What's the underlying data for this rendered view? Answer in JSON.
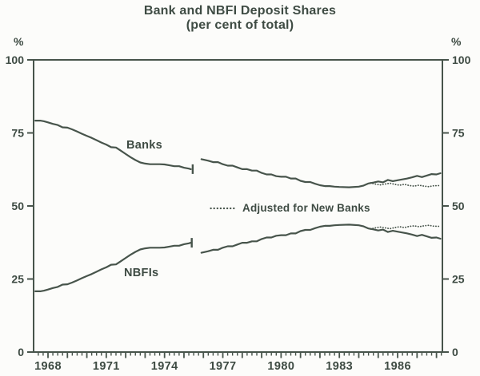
{
  "page": {
    "title": "Bank and NBFI Deposit Shares",
    "subtitle": "(per cent of total)",
    "y_axis_unit_left": "%",
    "y_axis_unit_right": "%"
  },
  "colors": {
    "ink": "#47544b",
    "text": "#3e4b43",
    "background": "#fcfcfa"
  },
  "labels": {
    "banks": "Banks",
    "nbfis": "NBFIs",
    "legend_adjusted": "Adjusted for New Banks"
  },
  "chart_data": {
    "type": "line",
    "title": "Bank and NBFI Deposit Shares",
    "subtitle": "(per cent of total)",
    "xlabel": "",
    "ylabel": "%",
    "ylim": [
      0,
      100
    ],
    "yticks": [
      0,
      25,
      50,
      75,
      100
    ],
    "xlim": [
      1967.35,
      1988.3
    ],
    "xtick_years": [
      1968,
      1971,
      1974,
      1977,
      1980,
      1983,
      1986
    ],
    "minor_tick_interval_years": 0.25,
    "grid": false,
    "legend_position": "middle-right-of-plot",
    "legend_entries": [
      {
        "label": "Adjusted for New Banks",
        "style": "dotted"
      }
    ],
    "annotations": [
      {
        "text": "Banks",
        "near": [
          1972.5,
          70
        ]
      },
      {
        "text": "NBFIs",
        "near": [
          1972.5,
          28
        ]
      }
    ],
    "series_break": {
      "note": "both solid series have a break with end-bars at mid-1975, resuming at a revised level in 1976",
      "markers": [
        {
          "x": 1975.45,
          "y": 62.6
        },
        {
          "x": 1975.4,
          "y": 37.4
        }
      ]
    },
    "series": [
      {
        "name": "Banks (pre-break)",
        "style": "solid",
        "points": [
          [
            1967.35,
            79.2
          ],
          [
            1967.6,
            79.2
          ],
          [
            1967.8,
            79.0
          ],
          [
            1968.0,
            78.6
          ],
          [
            1968.25,
            78.1
          ],
          [
            1968.5,
            77.7
          ],
          [
            1968.75,
            76.9
          ],
          [
            1969.0,
            76.8
          ],
          [
            1969.25,
            76.2
          ],
          [
            1969.5,
            75.5
          ],
          [
            1969.75,
            74.7
          ],
          [
            1970.0,
            74.0
          ],
          [
            1970.25,
            73.3
          ],
          [
            1970.5,
            72.5
          ],
          [
            1970.75,
            71.7
          ],
          [
            1971.0,
            71.0
          ],
          [
            1971.25,
            70.1
          ],
          [
            1971.5,
            70.0
          ],
          [
            1971.75,
            68.9
          ],
          [
            1972.0,
            67.8
          ],
          [
            1972.25,
            66.7
          ],
          [
            1972.5,
            65.7
          ],
          [
            1972.75,
            64.9
          ],
          [
            1973.0,
            64.5
          ],
          [
            1973.25,
            64.3
          ],
          [
            1973.75,
            64.3
          ],
          [
            1974.0,
            64.2
          ],
          [
            1974.25,
            63.9
          ],
          [
            1974.5,
            63.6
          ],
          [
            1974.75,
            63.6
          ],
          [
            1975.0,
            63.1
          ],
          [
            1975.25,
            62.8
          ],
          [
            1975.35,
            62.6
          ]
        ]
      },
      {
        "name": "Banks (post-break)",
        "style": "solid",
        "points": [
          [
            1975.9,
            66.0
          ],
          [
            1976.25,
            65.5
          ],
          [
            1976.5,
            65.0
          ],
          [
            1976.75,
            65.0
          ],
          [
            1977.0,
            64.3
          ],
          [
            1977.25,
            63.8
          ],
          [
            1977.5,
            63.8
          ],
          [
            1977.75,
            63.2
          ],
          [
            1978.0,
            62.6
          ],
          [
            1978.25,
            62.6
          ],
          [
            1978.5,
            62.1
          ],
          [
            1978.75,
            62.1
          ],
          [
            1979.0,
            61.3
          ],
          [
            1979.25,
            60.8
          ],
          [
            1979.5,
            60.8
          ],
          [
            1979.75,
            60.2
          ],
          [
            1980.0,
            60.0
          ],
          [
            1980.25,
            60.0
          ],
          [
            1980.5,
            59.4
          ],
          [
            1980.75,
            59.4
          ],
          [
            1981.0,
            58.6
          ],
          [
            1981.25,
            58.2
          ],
          [
            1981.5,
            58.2
          ],
          [
            1981.75,
            57.6
          ],
          [
            1982.0,
            57.1
          ],
          [
            1982.25,
            56.8
          ],
          [
            1982.5,
            56.8
          ],
          [
            1982.75,
            56.6
          ],
          [
            1983.0,
            56.5
          ],
          [
            1983.5,
            56.4
          ],
          [
            1984.0,
            56.6
          ],
          [
            1984.25,
            57.0
          ],
          [
            1984.5,
            57.7
          ],
          [
            1984.75,
            58.0
          ],
          [
            1985.0,
            58.4
          ],
          [
            1985.25,
            58.1
          ],
          [
            1985.5,
            58.9
          ],
          [
            1985.75,
            58.5
          ],
          [
            1986.0,
            58.8
          ],
          [
            1986.25,
            59.1
          ],
          [
            1986.5,
            59.4
          ],
          [
            1986.75,
            59.8
          ],
          [
            1987.0,
            60.3
          ],
          [
            1987.25,
            59.9
          ],
          [
            1987.5,
            60.4
          ],
          [
            1987.75,
            60.9
          ],
          [
            1988.0,
            60.8
          ],
          [
            1988.2,
            61.2
          ]
        ]
      },
      {
        "name": "NBFIs (pre-break)",
        "style": "solid",
        "points": [
          [
            1967.35,
            20.8
          ],
          [
            1967.6,
            20.8
          ],
          [
            1967.8,
            21.0
          ],
          [
            1968.0,
            21.4
          ],
          [
            1968.25,
            21.9
          ],
          [
            1968.5,
            22.3
          ],
          [
            1968.75,
            23.1
          ],
          [
            1969.0,
            23.2
          ],
          [
            1969.25,
            23.8
          ],
          [
            1969.5,
            24.5
          ],
          [
            1969.75,
            25.3
          ],
          [
            1970.0,
            26.0
          ],
          [
            1970.25,
            26.7
          ],
          [
            1970.5,
            27.5
          ],
          [
            1970.75,
            28.3
          ],
          [
            1971.0,
            29.0
          ],
          [
            1971.25,
            29.9
          ],
          [
            1971.5,
            30.0
          ],
          [
            1971.75,
            31.1
          ],
          [
            1972.0,
            32.2
          ],
          [
            1972.25,
            33.3
          ],
          [
            1972.5,
            34.3
          ],
          [
            1972.75,
            35.1
          ],
          [
            1973.0,
            35.5
          ],
          [
            1973.25,
            35.7
          ],
          [
            1973.75,
            35.7
          ],
          [
            1974.0,
            35.8
          ],
          [
            1974.25,
            36.1
          ],
          [
            1974.5,
            36.4
          ],
          [
            1974.75,
            36.4
          ],
          [
            1975.0,
            36.9
          ],
          [
            1975.25,
            37.2
          ],
          [
            1975.35,
            37.4
          ]
        ]
      },
      {
        "name": "NBFIs (post-break)",
        "style": "solid",
        "points": [
          [
            1975.9,
            34.0
          ],
          [
            1976.25,
            34.5
          ],
          [
            1976.5,
            35.0
          ],
          [
            1976.75,
            35.0
          ],
          [
            1977.0,
            35.7
          ],
          [
            1977.25,
            36.2
          ],
          [
            1977.5,
            36.2
          ],
          [
            1977.75,
            36.8
          ],
          [
            1978.0,
            37.4
          ],
          [
            1978.25,
            37.4
          ],
          [
            1978.5,
            37.9
          ],
          [
            1978.75,
            37.9
          ],
          [
            1979.0,
            38.7
          ],
          [
            1979.25,
            39.2
          ],
          [
            1979.5,
            39.2
          ],
          [
            1979.75,
            39.8
          ],
          [
            1980.0,
            40.0
          ],
          [
            1980.25,
            40.0
          ],
          [
            1980.5,
            40.6
          ],
          [
            1980.75,
            40.6
          ],
          [
            1981.0,
            41.4
          ],
          [
            1981.25,
            41.8
          ],
          [
            1981.5,
            41.8
          ],
          [
            1981.75,
            42.4
          ],
          [
            1982.0,
            42.9
          ],
          [
            1982.25,
            43.2
          ],
          [
            1982.5,
            43.2
          ],
          [
            1982.75,
            43.4
          ],
          [
            1983.0,
            43.5
          ],
          [
            1983.5,
            43.6
          ],
          [
            1984.0,
            43.4
          ],
          [
            1984.25,
            43.0
          ],
          [
            1984.5,
            42.3
          ],
          [
            1984.75,
            42.0
          ],
          [
            1985.0,
            41.6
          ],
          [
            1985.25,
            41.9
          ],
          [
            1985.5,
            41.1
          ],
          [
            1985.75,
            41.5
          ],
          [
            1986.0,
            41.2
          ],
          [
            1986.25,
            40.9
          ],
          [
            1986.5,
            40.6
          ],
          [
            1986.75,
            40.2
          ],
          [
            1987.0,
            39.7
          ],
          [
            1987.25,
            40.1
          ],
          [
            1987.5,
            39.6
          ],
          [
            1987.75,
            39.1
          ],
          [
            1988.0,
            39.2
          ],
          [
            1988.2,
            38.8
          ]
        ]
      },
      {
        "name": "Banks adjusted for new banks",
        "style": "dotted",
        "points": [
          [
            1984.6,
            57.9
          ],
          [
            1984.85,
            57.5
          ],
          [
            1985.1,
            57.2
          ],
          [
            1985.35,
            57.5
          ],
          [
            1985.6,
            57.8
          ],
          [
            1985.85,
            57.4
          ],
          [
            1986.1,
            57.1
          ],
          [
            1986.35,
            57.4
          ],
          [
            1986.6,
            57.0
          ],
          [
            1986.85,
            56.8
          ],
          [
            1987.1,
            57.1
          ],
          [
            1987.35,
            56.8
          ],
          [
            1987.6,
            56.6
          ],
          [
            1987.85,
            56.9
          ],
          [
            1988.2,
            57.0
          ]
        ]
      },
      {
        "name": "NBFIs adjusted for new banks",
        "style": "dotted",
        "points": [
          [
            1984.6,
            42.1
          ],
          [
            1984.85,
            42.5
          ],
          [
            1985.1,
            42.8
          ],
          [
            1985.35,
            42.5
          ],
          [
            1985.6,
            42.2
          ],
          [
            1985.85,
            42.6
          ],
          [
            1986.1,
            42.9
          ],
          [
            1986.35,
            42.6
          ],
          [
            1986.6,
            43.0
          ],
          [
            1986.85,
            43.2
          ],
          [
            1987.1,
            42.9
          ],
          [
            1987.35,
            43.2
          ],
          [
            1987.6,
            43.4
          ],
          [
            1987.85,
            43.1
          ],
          [
            1988.2,
            43.0
          ]
        ]
      }
    ]
  }
}
